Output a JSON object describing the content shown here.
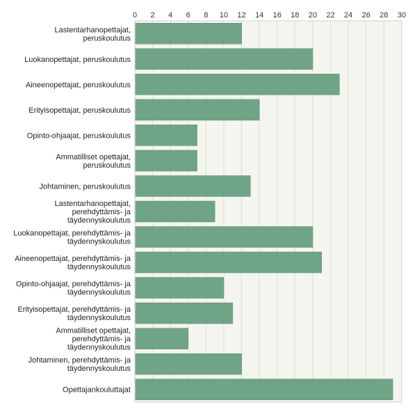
{
  "chart_data": {
    "type": "bar",
    "orientation": "horizontal",
    "title": "",
    "xlabel": "",
    "ylabel": "",
    "xlim": [
      0,
      30
    ],
    "ticks": [
      "0",
      "2",
      "4",
      "6",
      "8",
      "10",
      "12",
      "14",
      "16",
      "18",
      "20",
      "22",
      "24",
      "26",
      "28",
      "30"
    ],
    "grid": true,
    "categories": [
      [
        "Lastentarhanopettajat,",
        "peruskoulutus"
      ],
      [
        "Luokanopettajat, peruskoulutus"
      ],
      [
        "Aineenopettajat, peruskoulutus"
      ],
      [
        "Erityisopettajat, peruskoulutus"
      ],
      [
        "Opinto-ohjaajat, peruskoulutus"
      ],
      [
        "Ammatilliset opettajat,",
        "peruskoulutus"
      ],
      [
        "Johtaminen, peruskoulutus"
      ],
      [
        "Lastentarhanopettajat,",
        "perehdyttämis- ja",
        "täydennyskoulutus"
      ],
      [
        "Luokanopettajat, perehdyttämis- ja",
        "täydennyskoulutus"
      ],
      [
        "Aineenopettajat, perehdyttämis- ja",
        "täydennyskoulutus"
      ],
      [
        "Opinto-ohjaajat, perehdyttämis- ja",
        "täydennyskoulutus"
      ],
      [
        "Erityisopettajat, perehdyttämis- ja",
        "täydennyskoulutus"
      ],
      [
        "Ammatilliset opettajat,",
        "perehdyttämis- ja",
        "täydennyskoulutus"
      ],
      [
        "Johtaminen, perehdyttämis- ja",
        "täydennyskoulutus"
      ],
      [
        "Opettajankouluttajat"
      ]
    ],
    "values": [
      12,
      20,
      23,
      14,
      7,
      7,
      13,
      9,
      20,
      21,
      10,
      11,
      6,
      12,
      29
    ],
    "colors": {
      "bar": "#6fa487",
      "bar_edge": "#5a8c70",
      "plot_bg": "#f4f5ee",
      "grid": "#dddddd",
      "axis": "#9a9a9a"
    }
  }
}
